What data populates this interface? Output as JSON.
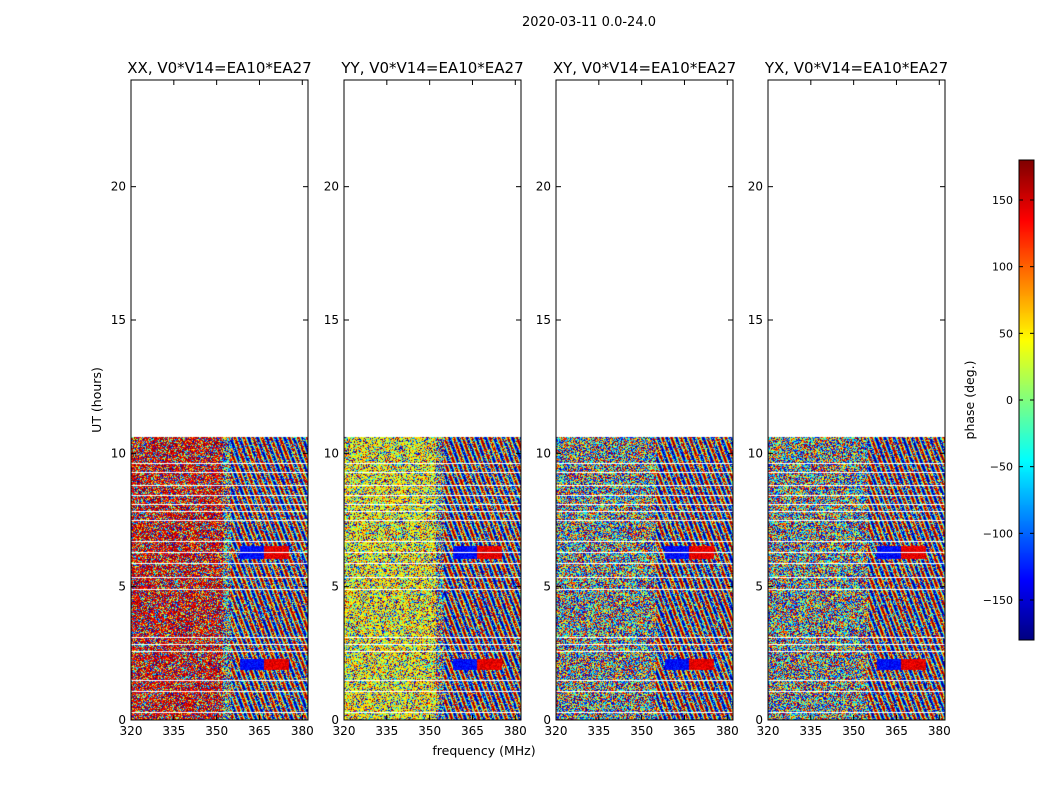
{
  "figure": {
    "suptitle": "2020-03-11 0.0-24.0",
    "xlabel": "frequency (MHz)",
    "ylabel": "UT (hours)"
  },
  "colorbar": {
    "label": "phase (deg.)",
    "ticks": [
      "150",
      "100",
      "50",
      "0",
      "−50",
      "−100",
      "−150"
    ],
    "tick_values": [
      150,
      100,
      50,
      0,
      -50,
      -100,
      -150
    ],
    "range": [
      -180,
      180
    ],
    "colormap": "jet",
    "colormap_stops": [
      "#00007f",
      "#0000ff",
      "#007fff",
      "#00ffff",
      "#7fff7f",
      "#ffff00",
      "#ff7f00",
      "#ff0000",
      "#7f0000"
    ]
  },
  "chart_data": {
    "type": "heatmap",
    "description_value": "phase (deg.)",
    "xlim": [
      320,
      382
    ],
    "ylim": [
      0,
      24
    ],
    "xticks": [
      320,
      335,
      350,
      365,
      380
    ],
    "yticks": [
      0,
      5,
      10,
      15,
      20
    ],
    "data_time_range": [
      0,
      10.6
    ],
    "flagged_time_rows": [
      0.3,
      1.1,
      1.5,
      2.6,
      2.85,
      3.1,
      4.9,
      5.35,
      5.9,
      6.3,
      6.7,
      7.5,
      7.85,
      8.1,
      8.45,
      8.8,
      9.3,
      9.65
    ],
    "panels": [
      {
        "title": "XX, V0*V14=EA10*EA27",
        "xtick_labels": [
          "320",
          "335",
          "350",
          "365",
          "380"
        ],
        "ytick_labels": [
          "0",
          "5",
          "10",
          "15",
          "20"
        ],
        "features": "red-dominated noise at low frequency, fringe stripes above 355 MHz, blue/red fringe near 6.3 h and 2.1 h"
      },
      {
        "title": "YY, V0*V14=EA10*EA27",
        "xtick_labels": [
          "320",
          "335",
          "350",
          "365",
          "380"
        ],
        "ytick_labels": [
          "0",
          "5",
          "10",
          "15",
          "20"
        ],
        "features": "yellow-green dominated noise, fringe stripes above 355 MHz"
      },
      {
        "title": "XY, V0*V14=EA10*EA27",
        "xtick_labels": [
          "320",
          "335",
          "350",
          "365",
          "380"
        ],
        "ytick_labels": [
          "0",
          "5",
          "10",
          "15",
          "20"
        ],
        "features": "mixed noise, fringe features near 6.3 h and 2.1 h"
      },
      {
        "title": "YX, V0*V14=EA10*EA27",
        "xtick_labels": [
          "320",
          "335",
          "350",
          "365",
          "380"
        ],
        "ytick_labels": [
          "0",
          "5",
          "10",
          "15",
          "20"
        ],
        "features": "mixed noise, fringe features near 6.3 h and 2.1 h"
      }
    ]
  }
}
